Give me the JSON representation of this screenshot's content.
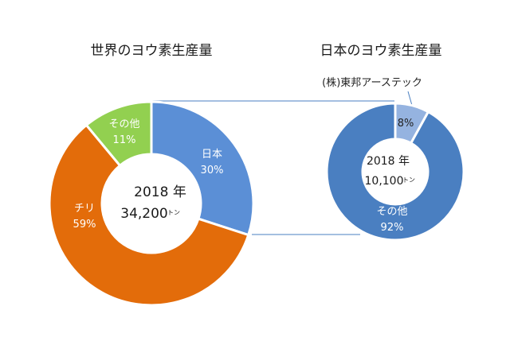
{
  "chart_data": [
    {
      "type": "pie",
      "title": "世界のヨウ素生産量",
      "center_year": "2018 年",
      "center_total": "34,200",
      "center_unit": "トン",
      "slices": [
        {
          "name": "日本",
          "label_pct": "30%",
          "value": 30,
          "color": "#5b8fd6"
        },
        {
          "name": "チリ",
          "label_pct": "59%",
          "value": 59,
          "color": "#e36c0a"
        },
        {
          "name": "その他",
          "label_pct": "11%",
          "value": 11,
          "color": "#92d050"
        }
      ]
    },
    {
      "type": "pie",
      "title": "日本のヨウ素生産量",
      "center_year": "2018 年",
      "center_total": "10,100",
      "center_unit": "トン",
      "slices": [
        {
          "name": "(株)東邦アーステック",
          "label_pct": "8%",
          "value": 8,
          "color": "#95b3e0"
        },
        {
          "name": "その他",
          "label_pct": "92%",
          "value": 92,
          "color": "#4a7fc1"
        }
      ]
    }
  ]
}
